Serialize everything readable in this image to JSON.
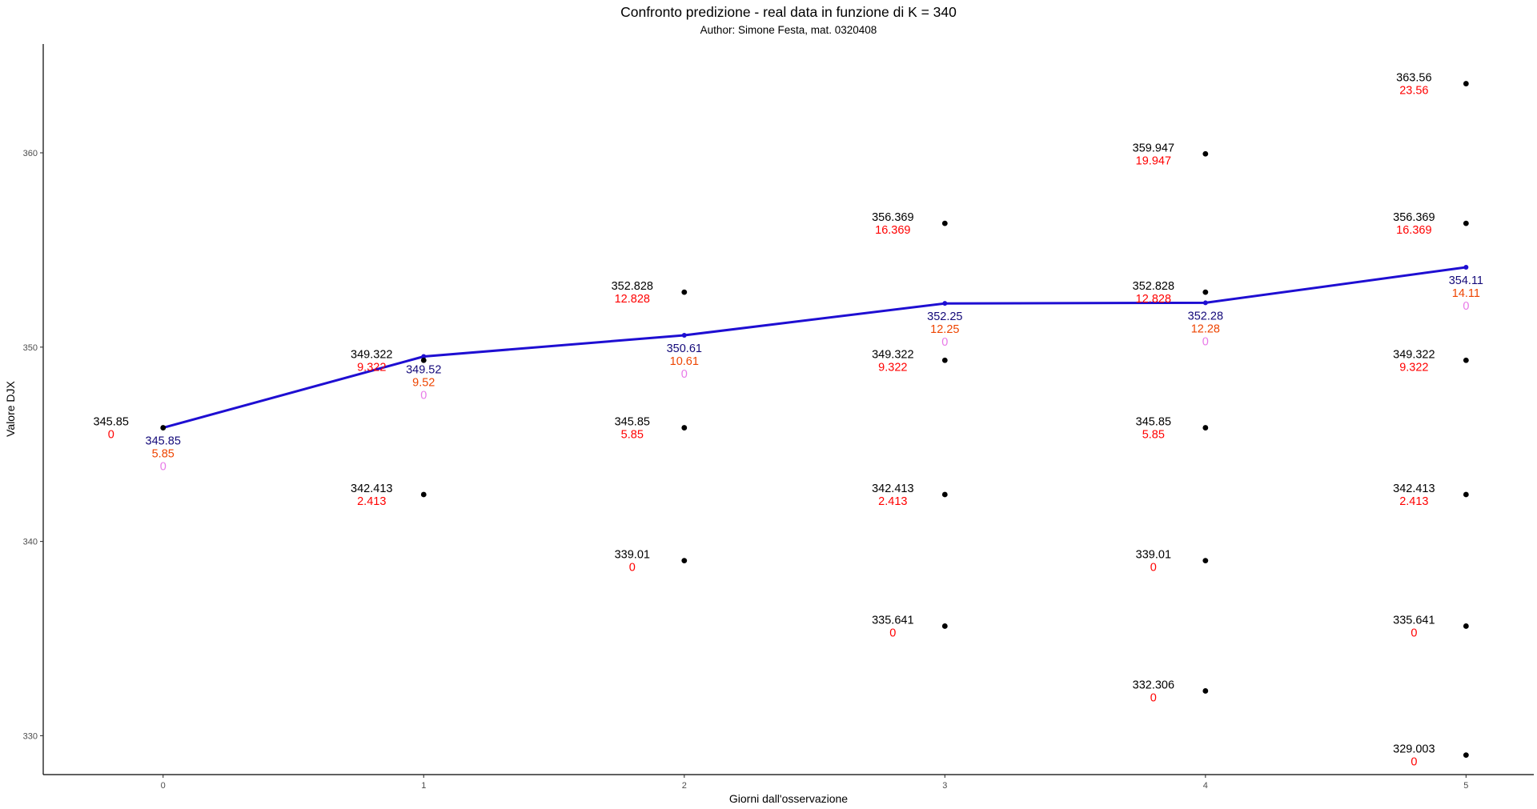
{
  "chart_data": {
    "type": "scatter",
    "title": "Confronto predizione - real data in funzione di K = 340",
    "subtitle": "Author: Simone Festa, mat. 0320408",
    "xlabel": "Giorni dall'osservazione",
    "ylabel": "Valore DJX",
    "xlim": [
      -0.46,
      5.26
    ],
    "ylim": [
      328.0,
      365.6
    ],
    "x_ticks": [
      0,
      1,
      2,
      3,
      4,
      5
    ],
    "y_ticks": [
      330,
      340,
      350,
      360
    ],
    "grid": false,
    "legend": "none",
    "colors": {
      "points": "#000000",
      "price_label": "#000000",
      "payoff_label": "#ff0000",
      "line": "#1e0ed2",
      "line_value_label": "#140a7a",
      "line_second_label": "#ee4400",
      "line_third_label": "#e879e8"
    },
    "series": [
      {
        "kind": "points",
        "points": [
          {
            "x": 0,
            "y": 345.85,
            "label": "345.85",
            "payoff": "0"
          },
          {
            "x": 1,
            "y": 349.322,
            "label": "349.322",
            "payoff": "9.322"
          },
          {
            "x": 1,
            "y": 342.413,
            "label": "342.413",
            "payoff": "2.413"
          },
          {
            "x": 2,
            "y": 352.828,
            "label": "352.828",
            "payoff": "12.828"
          },
          {
            "x": 2,
            "y": 345.85,
            "label": "345.85",
            "payoff": "5.85"
          },
          {
            "x": 2,
            "y": 339.01,
            "label": "339.01",
            "payoff": "0"
          },
          {
            "x": 3,
            "y": 356.369,
            "label": "356.369",
            "payoff": "16.369"
          },
          {
            "x": 3,
            "y": 349.322,
            "label": "349.322",
            "payoff": "9.322"
          },
          {
            "x": 3,
            "y": 342.413,
            "label": "342.413",
            "payoff": "2.413"
          },
          {
            "x": 3,
            "y": 335.641,
            "label": "335.641",
            "payoff": "0"
          },
          {
            "x": 4,
            "y": 359.947,
            "label": "359.947",
            "payoff": "19.947"
          },
          {
            "x": 4,
            "y": 352.828,
            "label": "352.828",
            "payoff": "12.828"
          },
          {
            "x": 4,
            "y": 345.85,
            "label": "345.85",
            "payoff": "5.85"
          },
          {
            "x": 4,
            "y": 339.01,
            "label": "339.01",
            "payoff": "0"
          },
          {
            "x": 4,
            "y": 332.306,
            "label": "332.306",
            "payoff": "0"
          },
          {
            "x": 5,
            "y": 363.56,
            "label": "363.56",
            "payoff": "23.56"
          },
          {
            "x": 5,
            "y": 356.369,
            "label": "356.369",
            "payoff": "16.369"
          },
          {
            "x": 5,
            "y": 349.322,
            "label": "349.322",
            "payoff": "9.322"
          },
          {
            "x": 5,
            "y": 342.413,
            "label": "342.413",
            "payoff": "2.413"
          },
          {
            "x": 5,
            "y": 335.641,
            "label": "335.641",
            "payoff": "0"
          },
          {
            "x": 5,
            "y": 329.003,
            "label": "329.003",
            "payoff": "0"
          }
        ]
      },
      {
        "kind": "line",
        "points": [
          {
            "x": 0,
            "y": 345.85,
            "label": "345.85",
            "second": "5.85",
            "third": "0"
          },
          {
            "x": 1,
            "y": 349.52,
            "label": "349.52",
            "second": "9.52",
            "third": "0"
          },
          {
            "x": 2,
            "y": 350.61,
            "label": "350.61",
            "second": "10.61",
            "third": "0"
          },
          {
            "x": 3,
            "y": 352.25,
            "label": "352.25",
            "second": "12.25",
            "third": "0"
          },
          {
            "x": 4,
            "y": 352.28,
            "label": "352.28",
            "second": "12.28",
            "third": "0"
          },
          {
            "x": 5,
            "y": 354.11,
            "label": "354.11",
            "second": "14.11",
            "third": "0"
          }
        ]
      }
    ]
  }
}
